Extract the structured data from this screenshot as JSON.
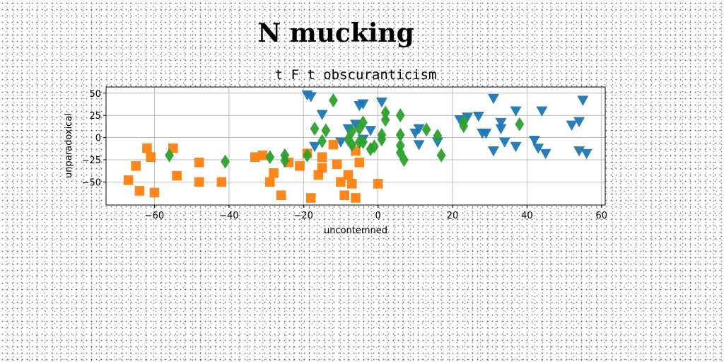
{
  "page": {
    "title": "N mucking"
  },
  "chart_data": {
    "type": "scatter",
    "title": "t F t obscuranticism",
    "xlabel": "uncontemned",
    "ylabel": "unparadoxical",
    "xlim": [
      -73,
      61
    ],
    "ylim": [
      -76,
      57
    ],
    "xticks": [
      -60,
      -40,
      -20,
      0,
      20,
      40,
      60
    ],
    "yticks": [
      -50,
      -25,
      0,
      25,
      50
    ],
    "grid": true,
    "legend": "none",
    "series": [
      {
        "color": "#1f77b4",
        "marker": "triangle-down",
        "points": [
          [
            -19,
            48
          ],
          [
            -18,
            46
          ],
          [
            -15,
            26
          ],
          [
            -5,
            36
          ],
          [
            -4,
            38
          ],
          [
            1,
            40
          ],
          [
            -6,
            15
          ],
          [
            -8,
            10
          ],
          [
            -2,
            8
          ],
          [
            -4,
            -2
          ],
          [
            -10,
            -5
          ],
          [
            10,
            5
          ],
          [
            11,
            10
          ],
          [
            11,
            -8
          ],
          [
            16,
            -5
          ],
          [
            22,
            20
          ],
          [
            24,
            23
          ],
          [
            27,
            24
          ],
          [
            28,
            5
          ],
          [
            29,
            5
          ],
          [
            31,
            44
          ],
          [
            31,
            -15
          ],
          [
            33,
            17
          ],
          [
            33,
            10
          ],
          [
            34,
            -5
          ],
          [
            37,
            -10
          ],
          [
            37,
            30
          ],
          [
            42,
            -3
          ],
          [
            43,
            -12
          ],
          [
            44,
            30
          ],
          [
            45,
            -18
          ],
          [
            52,
            14
          ],
          [
            54,
            18
          ],
          [
            54,
            -15
          ],
          [
            55,
            42
          ],
          [
            56,
            -18
          ],
          [
            -17,
            -10
          ]
        ]
      },
      {
        "color": "#ff7f0e",
        "marker": "square",
        "points": [
          [
            -67,
            -48
          ],
          [
            -65,
            -32
          ],
          [
            -64,
            -60
          ],
          [
            -62,
            -12
          ],
          [
            -61,
            -22
          ],
          [
            -60,
            -62
          ],
          [
            -55,
            -12
          ],
          [
            -54,
            -43
          ],
          [
            -48,
            -28
          ],
          [
            -48,
            -50
          ],
          [
            -42,
            -50
          ],
          [
            -33,
            -22
          ],
          [
            -31,
            -20
          ],
          [
            -29,
            -50
          ],
          [
            -28,
            -40
          ],
          [
            -26,
            -65
          ],
          [
            -24,
            -28
          ],
          [
            -21,
            -32
          ],
          [
            -19,
            -18
          ],
          [
            -18,
            -68
          ],
          [
            -16,
            -42
          ],
          [
            -15,
            -34
          ],
          [
            -15,
            -22
          ],
          [
            -12,
            -8
          ],
          [
            -11,
            -30
          ],
          [
            -10,
            -50
          ],
          [
            -9,
            -65
          ],
          [
            -8,
            -42
          ],
          [
            -7,
            -52
          ],
          [
            -6,
            -15
          ],
          [
            -6,
            -68
          ],
          [
            -5,
            -28
          ],
          [
            0,
            -52
          ]
        ]
      },
      {
        "color": "#2ca02c",
        "marker": "diamond",
        "points": [
          [
            -56,
            -20
          ],
          [
            -41,
            -27
          ],
          [
            -29,
            -22
          ],
          [
            -25,
            -20
          ],
          [
            -25,
            -26
          ],
          [
            -19,
            -20
          ],
          [
            -17,
            10
          ],
          [
            -15,
            -4
          ],
          [
            -14,
            8
          ],
          [
            -12,
            42
          ],
          [
            -8,
            -2
          ],
          [
            -7,
            -8
          ],
          [
            -7,
            7
          ],
          [
            -5,
            -5
          ],
          [
            -5,
            10
          ],
          [
            -4,
            -5
          ],
          [
            -4,
            17
          ],
          [
            -2,
            -13
          ],
          [
            -1,
            -10
          ],
          [
            1,
            -2
          ],
          [
            1,
            3
          ],
          [
            2,
            28
          ],
          [
            2,
            20
          ],
          [
            6,
            25
          ],
          [
            6,
            3
          ],
          [
            6,
            -9
          ],
          [
            6,
            -17
          ],
          [
            7,
            -25
          ],
          [
            13,
            9
          ],
          [
            16,
            2
          ],
          [
            17,
            -20
          ],
          [
            23,
            13
          ],
          [
            23,
            18
          ],
          [
            38,
            15
          ]
        ]
      }
    ]
  }
}
